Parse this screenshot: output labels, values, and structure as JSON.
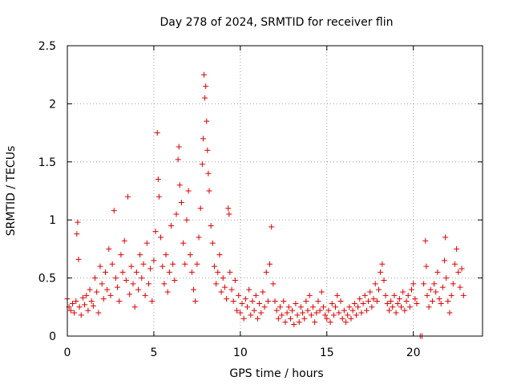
{
  "chart_data": {
    "type": "scatter",
    "title": "Day 278 of 2024, SRMTID for receiver flin",
    "xlabel": "GPS time / hours",
    "ylabel": "SRMTID / TECUs",
    "xlim": [
      0,
      24
    ],
    "ylim": [
      0,
      2.5
    ],
    "xticks": [
      0,
      5,
      10,
      15,
      20
    ],
    "yticks": [
      0,
      0.5,
      1,
      1.5,
      2,
      2.5
    ],
    "xtick_labels": [
      "0",
      "5",
      "10",
      "15",
      "20"
    ],
    "ytick_labels": [
      "0",
      "0.5",
      "1",
      "1.5",
      "2",
      "2.5"
    ],
    "grid": true,
    "marker": "plus",
    "marker_color": "#e00000",
    "series": [
      {
        "name": "SRMTID",
        "points": [
          [
            0.0,
            0.32
          ],
          [
            0.1,
            0.25
          ],
          [
            0.2,
            0.22
          ],
          [
            0.3,
            0.28
          ],
          [
            0.4,
            0.2
          ],
          [
            0.5,
            0.3
          ],
          [
            0.55,
            0.88
          ],
          [
            0.6,
            0.98
          ],
          [
            0.65,
            0.66
          ],
          [
            0.7,
            0.25
          ],
          [
            0.8,
            0.18
          ],
          [
            0.9,
            0.33
          ],
          [
            1.0,
            0.27
          ],
          [
            1.1,
            0.35
          ],
          [
            1.2,
            0.22
          ],
          [
            1.3,
            0.4
          ],
          [
            1.4,
            0.3
          ],
          [
            1.5,
            0.26
          ],
          [
            1.6,
            0.5
          ],
          [
            1.7,
            0.38
          ],
          [
            1.8,
            0.2
          ],
          [
            1.9,
            0.6
          ],
          [
            2.0,
            0.45
          ],
          [
            2.1,
            0.32
          ],
          [
            2.2,
            0.55
          ],
          [
            2.3,
            0.4
          ],
          [
            2.4,
            0.75
          ],
          [
            2.5,
            0.35
          ],
          [
            2.6,
            0.62
          ],
          [
            2.7,
            1.08
          ],
          [
            2.8,
            0.5
          ],
          [
            2.9,
            0.42
          ],
          [
            3.0,
            0.3
          ],
          [
            3.1,
            0.7
          ],
          [
            3.2,
            0.55
          ],
          [
            3.3,
            0.82
          ],
          [
            3.4,
            0.48
          ],
          [
            3.5,
            1.2
          ],
          [
            3.6,
            0.36
          ],
          [
            3.7,
            0.6
          ],
          [
            3.8,
            0.45
          ],
          [
            3.9,
            0.25
          ],
          [
            4.0,
            0.55
          ],
          [
            4.1,
            0.4
          ],
          [
            4.2,
            0.7
          ],
          [
            4.3,
            0.5
          ],
          [
            4.4,
            0.62
          ],
          [
            4.5,
            0.35
          ],
          [
            4.6,
            0.8
          ],
          [
            4.7,
            0.45
          ],
          [
            4.8,
            0.58
          ],
          [
            4.9,
            0.3
          ],
          [
            5.0,
            0.65
          ],
          [
            5.1,
            0.9
          ],
          [
            5.2,
            1.75
          ],
          [
            5.25,
            1.35
          ],
          [
            5.3,
            1.2
          ],
          [
            5.4,
            0.85
          ],
          [
            5.5,
            0.6
          ],
          [
            5.6,
            0.45
          ],
          [
            5.7,
            0.7
          ],
          [
            5.8,
            0.38
          ],
          [
            5.9,
            0.55
          ],
          [
            6.0,
            0.95
          ],
          [
            6.1,
            0.62
          ],
          [
            6.2,
            0.48
          ],
          [
            6.3,
            1.05
          ],
          [
            6.4,
            1.52
          ],
          [
            6.45,
            1.63
          ],
          [
            6.5,
            1.3
          ],
          [
            6.6,
            1.15
          ],
          [
            6.7,
            0.8
          ],
          [
            6.8,
            0.62
          ],
          [
            6.9,
            1.0
          ],
          [
            7.0,
            1.25
          ],
          [
            7.1,
            0.7
          ],
          [
            7.2,
            0.55
          ],
          [
            7.3,
            0.4
          ],
          [
            7.4,
            0.3
          ],
          [
            7.5,
            0.62
          ],
          [
            7.6,
            0.85
          ],
          [
            7.7,
            1.1
          ],
          [
            7.8,
            1.48
          ],
          [
            7.85,
            1.7
          ],
          [
            7.9,
            2.25
          ],
          [
            7.95,
            2.05
          ],
          [
            8.0,
            2.15
          ],
          [
            8.05,
            1.85
          ],
          [
            8.1,
            1.6
          ],
          [
            8.15,
            1.4
          ],
          [
            8.2,
            1.25
          ],
          [
            8.3,
            0.95
          ],
          [
            8.4,
            0.8
          ],
          [
            8.5,
            0.6
          ],
          [
            8.6,
            0.45
          ],
          [
            8.7,
            0.55
          ],
          [
            8.8,
            0.7
          ],
          [
            8.9,
            0.38
          ],
          [
            9.0,
            0.5
          ],
          [
            9.1,
            0.42
          ],
          [
            9.2,
            0.32
          ],
          [
            9.3,
            1.1
          ],
          [
            9.35,
            1.05
          ],
          [
            9.4,
            0.55
          ],
          [
            9.5,
            0.4
          ],
          [
            9.6,
            0.3
          ],
          [
            9.7,
            0.48
          ],
          [
            9.8,
            0.22
          ],
          [
            9.9,
            0.35
          ],
          [
            10.0,
            0.2
          ],
          [
            10.1,
            0.28
          ],
          [
            10.2,
            0.15
          ],
          [
            10.3,
            0.32
          ],
          [
            10.4,
            0.25
          ],
          [
            10.5,
            0.4
          ],
          [
            10.6,
            0.18
          ],
          [
            10.7,
            0.3
          ],
          [
            10.8,
            0.22
          ],
          [
            10.9,
            0.35
          ],
          [
            11.0,
            0.15
          ],
          [
            11.1,
            0.28
          ],
          [
            11.2,
            0.2
          ],
          [
            11.3,
            0.38
          ],
          [
            11.4,
            0.25
          ],
          [
            11.5,
            0.55
          ],
          [
            11.6,
            0.3
          ],
          [
            11.7,
            0.62
          ],
          [
            11.8,
            0.94
          ],
          [
            11.9,
            0.45
          ],
          [
            12.0,
            0.3
          ],
          [
            12.1,
            0.22
          ],
          [
            12.2,
            0.15
          ],
          [
            12.3,
            0.25
          ],
          [
            12.4,
            0.18
          ],
          [
            12.5,
            0.3
          ],
          [
            12.6,
            0.12
          ],
          [
            12.7,
            0.2
          ],
          [
            12.8,
            0.25
          ],
          [
            12.9,
            0.15
          ],
          [
            13.0,
            0.22
          ],
          [
            13.1,
            0.1
          ],
          [
            13.2,
            0.28
          ],
          [
            13.3,
            0.18
          ],
          [
            13.4,
            0.12
          ],
          [
            13.5,
            0.25
          ],
          [
            13.6,
            0.2
          ],
          [
            13.7,
            0.15
          ],
          [
            13.8,
            0.3
          ],
          [
            13.9,
            0.22
          ],
          [
            14.0,
            0.35
          ],
          [
            14.1,
            0.18
          ],
          [
            14.2,
            0.25
          ],
          [
            14.3,
            0.12
          ],
          [
            14.4,
            0.2
          ],
          [
            14.5,
            0.3
          ],
          [
            14.6,
            0.22
          ],
          [
            14.7,
            0.38
          ],
          [
            14.8,
            0.25
          ],
          [
            14.9,
            0.18
          ],
          [
            15.0,
            0.15
          ],
          [
            15.1,
            0.22
          ],
          [
            15.2,
            0.12
          ],
          [
            15.3,
            0.28
          ],
          [
            15.4,
            0.18
          ],
          [
            15.5,
            0.25
          ],
          [
            15.6,
            0.35
          ],
          [
            15.7,
            0.2
          ],
          [
            15.8,
            0.3
          ],
          [
            15.9,
            0.15
          ],
          [
            16.0,
            0.22
          ],
          [
            16.1,
            0.12
          ],
          [
            16.2,
            0.18
          ],
          [
            16.3,
            0.25
          ],
          [
            16.4,
            0.15
          ],
          [
            16.5,
            0.22
          ],
          [
            16.6,
            0.28
          ],
          [
            16.7,
            0.18
          ],
          [
            16.8,
            0.25
          ],
          [
            16.9,
            0.32
          ],
          [
            17.0,
            0.2
          ],
          [
            17.1,
            0.28
          ],
          [
            17.2,
            0.35
          ],
          [
            17.3,
            0.22
          ],
          [
            17.4,
            0.3
          ],
          [
            17.5,
            0.38
          ],
          [
            17.6,
            0.25
          ],
          [
            17.7,
            0.32
          ],
          [
            17.8,
            0.45
          ],
          [
            17.9,
            0.3
          ],
          [
            18.0,
            0.4
          ],
          [
            18.1,
            0.55
          ],
          [
            18.2,
            0.62
          ],
          [
            18.3,
            0.48
          ],
          [
            18.4,
            0.35
          ],
          [
            18.5,
            0.28
          ],
          [
            18.6,
            0.22
          ],
          [
            18.7,
            0.3
          ],
          [
            18.8,
            0.25
          ],
          [
            18.9,
            0.35
          ],
          [
            19.0,
            0.2
          ],
          [
            19.1,
            0.28
          ],
          [
            19.2,
            0.32
          ],
          [
            19.3,
            0.25
          ],
          [
            19.4,
            0.38
          ],
          [
            19.5,
            0.22
          ],
          [
            19.6,
            0.3
          ],
          [
            19.7,
            0.35
          ],
          [
            19.8,
            0.25
          ],
          [
            19.9,
            0.4
          ],
          [
            20.0,
            0.45
          ],
          [
            20.1,
            0.32
          ],
          [
            20.2,
            0.28
          ],
          [
            20.4,
            0.0
          ],
          [
            20.5,
            0.0
          ],
          [
            20.6,
            0.45
          ],
          [
            20.7,
            0.82
          ],
          [
            20.75,
            0.6
          ],
          [
            20.8,
            0.35
          ],
          [
            20.9,
            0.25
          ],
          [
            21.0,
            0.4
          ],
          [
            21.1,
            0.3
          ],
          [
            21.2,
            0.45
          ],
          [
            21.3,
            0.38
          ],
          [
            21.4,
            0.55
          ],
          [
            21.5,
            0.32
          ],
          [
            21.6,
            0.28
          ],
          [
            21.7,
            0.42
          ],
          [
            21.8,
            0.65
          ],
          [
            21.85,
            0.85
          ],
          [
            21.9,
            0.5
          ],
          [
            22.0,
            0.3
          ],
          [
            22.1,
            0.2
          ],
          [
            22.2,
            0.35
          ],
          [
            22.3,
            0.45
          ],
          [
            22.4,
            0.62
          ],
          [
            22.5,
            0.75
          ],
          [
            22.6,
            0.55
          ],
          [
            22.7,
            0.42
          ],
          [
            22.8,
            0.58
          ],
          [
            22.9,
            0.35
          ]
        ]
      }
    ]
  }
}
